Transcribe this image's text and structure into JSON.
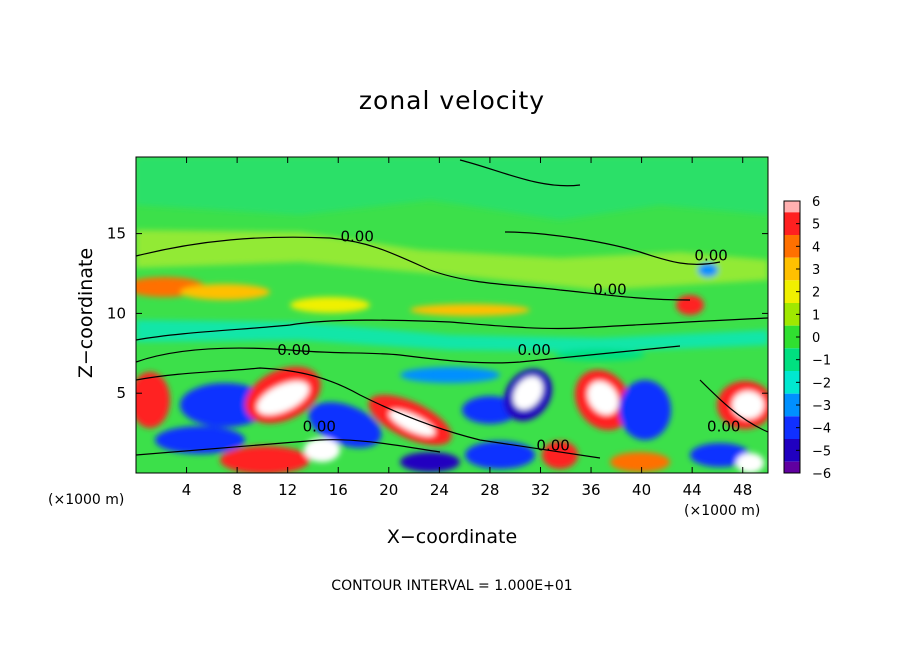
{
  "chart_data": {
    "type": "heatmap",
    "title": "zonal velocity",
    "xlabel": "X−coordinate",
    "ylabel": "Z−coordinate",
    "x_unit_left": "(×1000 m)",
    "x_unit_right": "(×1000 m)",
    "footer": "CONTOUR INTERVAL = 1.000E+01",
    "xlim": [
      0,
      50
    ],
    "ylim": [
      0,
      19.8
    ],
    "x_ticks": [
      "4",
      "8",
      "12",
      "16",
      "20",
      "24",
      "28",
      "32",
      "36",
      "40",
      "44",
      "48"
    ],
    "y_ticks": [
      "5",
      "10",
      "15"
    ],
    "colorbar": {
      "ticks": [
        "6",
        "5",
        "4",
        "3",
        "2",
        "1",
        "0",
        "−1",
        "−2",
        "−3",
        "−4",
        "−5",
        "−6"
      ],
      "colors": [
        "#ffb0b0",
        "#ff2020",
        "#ff7000",
        "#ffc000",
        "#f0f000",
        "#a0e800",
        "#30e030",
        "#00e080",
        "#00e8d0",
        "#0090ff",
        "#1030ff",
        "#2000c0",
        "#6000a0"
      ]
    },
    "background_color": "#3ce04a",
    "contour_labels": [
      {
        "text": "0.00",
        "x": 17.5,
        "y": 14.5
      },
      {
        "text": "0.00",
        "x": 45.5,
        "y": 13.3
      },
      {
        "text": "0.00",
        "x": 37.5,
        "y": 11.2
      },
      {
        "text": "0.00",
        "x": 12.5,
        "y": 7.4
      },
      {
        "text": "0.00",
        "x": 31.5,
        "y": 7.4
      },
      {
        "text": "0.00",
        "x": 14.5,
        "y": 2.6
      },
      {
        "text": "0.00",
        "x": 46.5,
        "y": 2.6
      },
      {
        "text": "0.00",
        "x": 33.0,
        "y": 1.4
      }
    ]
  }
}
